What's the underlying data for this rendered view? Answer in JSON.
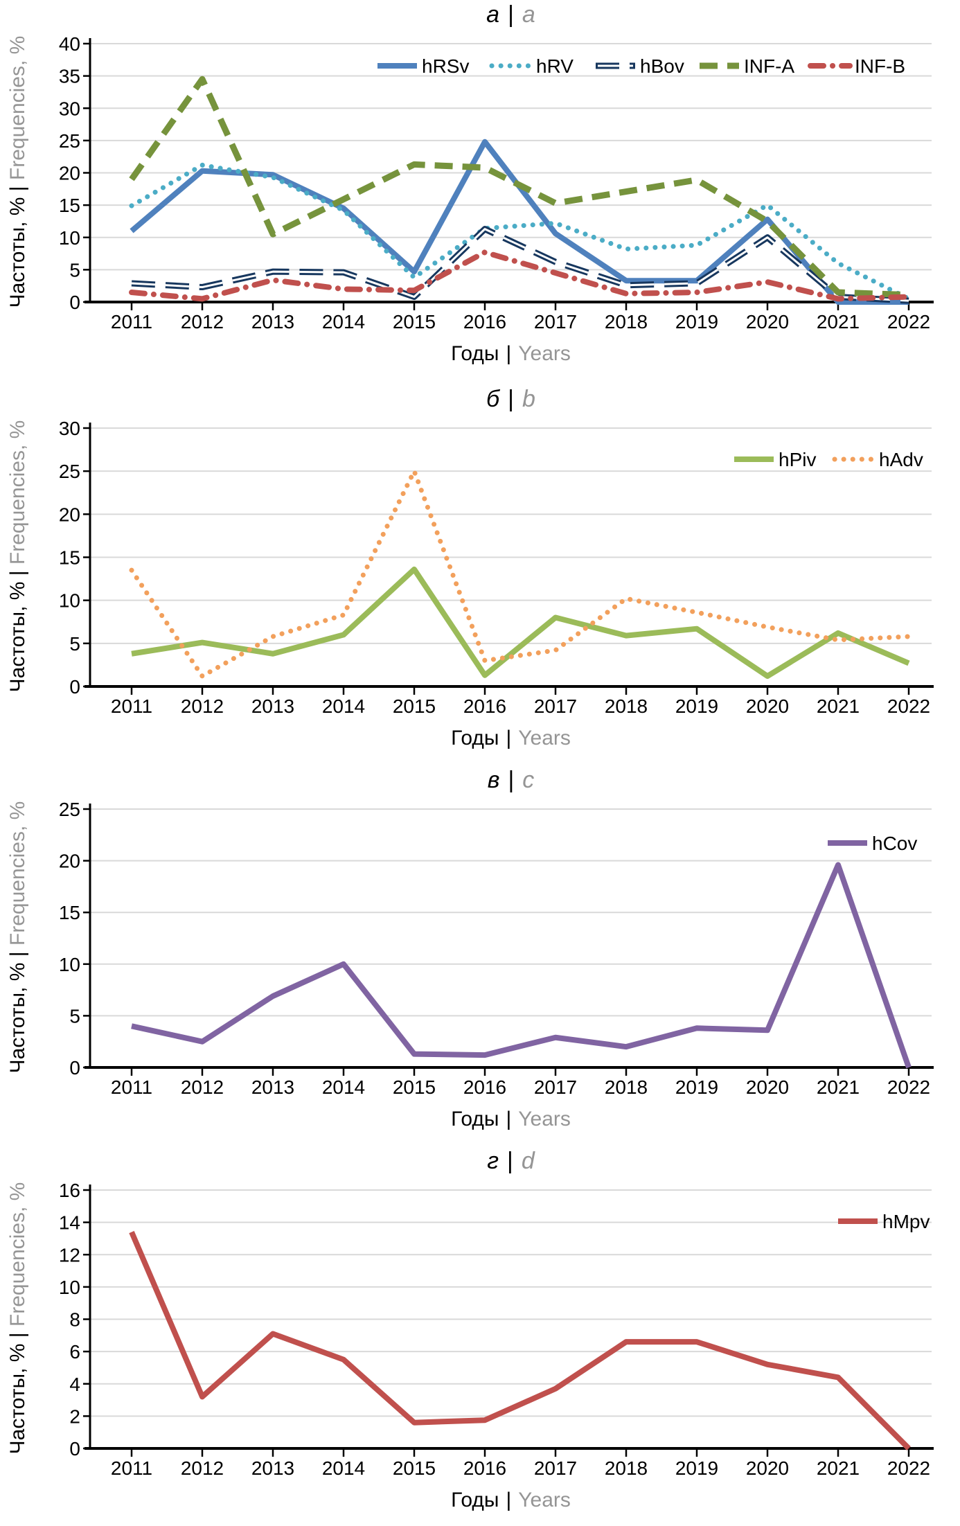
{
  "labels": {
    "xlabel_ru": "Годы",
    "xlabel_en": "Years",
    "ylabel_ru": "Частоты, %",
    "ylabel_en": "Frequencies, %",
    "sep": "|"
  },
  "colors": {
    "axis": "#000000",
    "grid": "#D9D9D9",
    "muted_text": "#959595",
    "hRSv": "#4F81BD",
    "hRV": "#4BACC6",
    "hBov": "#17375E",
    "INF_A": "#76933C",
    "INF_B": "#C0504D",
    "hPiv": "#9BBB59",
    "hAdv": "#F2A05C",
    "hCov": "#8064A2",
    "hMpv": "#C0504D"
  },
  "chart_data": [
    {
      "id": "a",
      "type": "line",
      "title_ru": "а",
      "title_en": "a",
      "x": [
        2011,
        2012,
        2013,
        2014,
        2015,
        2016,
        2017,
        2018,
        2019,
        2020,
        2021,
        2022
      ],
      "ylim": [
        0,
        40
      ],
      "yticks": [
        0,
        5,
        10,
        15,
        20,
        25,
        30,
        35,
        40
      ],
      "grid": true,
      "legend_position": "top-inline",
      "series": [
        {
          "name": "hRSv",
          "color": "#4F81BD",
          "style": "solid",
          "values": [
            11,
            20.3,
            19.7,
            14.5,
            4.7,
            24.8,
            10.6,
            3.3,
            3.3,
            12.8,
            0,
            0
          ]
        },
        {
          "name": "hRV",
          "color": "#4BACC6",
          "style": "dotted",
          "values": [
            14.9,
            21.2,
            19.3,
            14.2,
            3.8,
            11.4,
            12.2,
            8.2,
            8.8,
            15,
            6,
            0.5
          ]
        },
        {
          "name": "hBov",
          "color": "#17375E",
          "style": "dashed-outline",
          "values": [
            2.9,
            2.3,
            4.7,
            4.6,
            0.8,
            11.3,
            6.2,
            2.6,
            2.9,
            10,
            0.8,
            0.2
          ]
        },
        {
          "name": "INF-A",
          "color": "#76933C",
          "style": "dashed",
          "values": [
            19,
            34.5,
            10.5,
            15.9,
            21.3,
            20.8,
            15.3,
            17.1,
            18.9,
            12.5,
            1.5,
            1.1
          ]
        },
        {
          "name": "INF-B",
          "color": "#C0504D",
          "style": "dashdot",
          "values": [
            1.5,
            0.5,
            3.4,
            2.0,
            1.8,
            7.7,
            4.5,
            1.3,
            1.5,
            3.1,
            0.5,
            0.8
          ]
        }
      ]
    },
    {
      "id": "b",
      "type": "line",
      "title_ru": "б",
      "title_en": "b",
      "x": [
        2011,
        2012,
        2013,
        2014,
        2015,
        2016,
        2017,
        2018,
        2019,
        2020,
        2021,
        2022
      ],
      "ylim": [
        0,
        30
      ],
      "yticks": [
        0,
        5,
        10,
        15,
        20,
        25,
        30
      ],
      "grid": true,
      "legend_position": "top-right",
      "series": [
        {
          "name": "hPiv",
          "color": "#9BBB59",
          "style": "solid",
          "values": [
            3.8,
            5.1,
            3.8,
            6.0,
            13.6,
            1.3,
            8.0,
            5.9,
            6.7,
            1.2,
            6.2,
            2.7
          ]
        },
        {
          "name": "hAdv",
          "color": "#F2A05C",
          "style": "dotted",
          "values": [
            13.5,
            1.2,
            5.8,
            8.3,
            25.0,
            3.0,
            4.2,
            10.2,
            8.6,
            6.9,
            5.4,
            5.8
          ]
        }
      ]
    },
    {
      "id": "c",
      "type": "line",
      "title_ru": "в",
      "title_en": "c",
      "x": [
        2011,
        2012,
        2013,
        2014,
        2015,
        2016,
        2017,
        2018,
        2019,
        2020,
        2021,
        2022
      ],
      "ylim": [
        0,
        25
      ],
      "yticks": [
        0,
        5,
        10,
        15,
        20,
        25
      ],
      "grid": true,
      "legend_position": "top-right",
      "series": [
        {
          "name": "hCov",
          "color": "#8064A2",
          "style": "solid",
          "values": [
            4.0,
            2.5,
            6.9,
            10.0,
            1.3,
            1.2,
            2.9,
            2.0,
            3.8,
            3.6,
            19.6,
            0
          ]
        }
      ]
    },
    {
      "id": "d",
      "type": "line",
      "title_ru": "г",
      "title_en": "d",
      "x": [
        2011,
        2012,
        2013,
        2014,
        2015,
        2016,
        2017,
        2018,
        2019,
        2020,
        2021,
        2022
      ],
      "ylim": [
        0,
        16
      ],
      "yticks": [
        0,
        2,
        4,
        6,
        8,
        10,
        12,
        14,
        16
      ],
      "grid": true,
      "legend_position": "top-right",
      "series": [
        {
          "name": "hMpv",
          "color": "#C0504D",
          "style": "solid",
          "values": [
            13.4,
            3.2,
            7.1,
            5.5,
            1.6,
            1.75,
            3.7,
            6.6,
            6.6,
            5.2,
            4.4,
            0
          ]
        }
      ]
    }
  ]
}
